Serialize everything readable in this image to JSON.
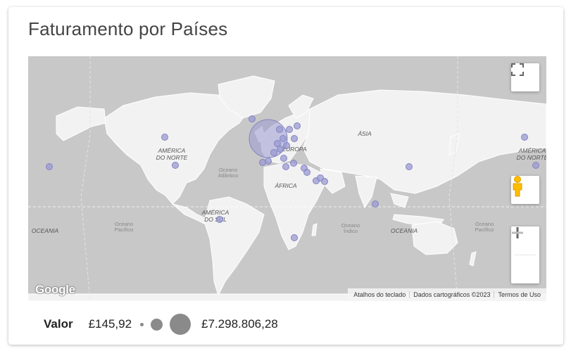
{
  "title": "Faturamento por Países",
  "map": {
    "labels": {
      "north_america_1": "AMÉRICA",
      "north_america_2": "DO NORTE",
      "north_america_right_1": "AMÉRICA",
      "north_america_right_2": "DO NORTE",
      "south_america_1": "AMÉRICA",
      "south_america_2": "DO SUL",
      "europe": "EUROPA",
      "asia": "ÁSIA",
      "africa": "ÁFRICA",
      "oceania_left": "OCEANIA",
      "oceania_right": "OCEANIA",
      "atlantic_1": "Oceano",
      "atlantic_2": "Atlântico",
      "pacific_left_1": "Oceano",
      "pacific_left_2": "Pacífico",
      "indian_1": "Oceano",
      "indian_2": "Índico",
      "pacific_right_1": "Oceano",
      "pacific_right_2": "Pacífico"
    },
    "google_logo": "Google",
    "attribution": {
      "shortcuts": "Atalhos do teclado",
      "map_data": "Dados cartográficos ©2023",
      "terms": "Termos de Uso"
    },
    "colors": {
      "water": "#c8c8c8",
      "land": "#f2f2f2",
      "marker": "#9a9ad2",
      "marker_stroke": "#8484c4"
    }
  },
  "legend": {
    "label": "Valor",
    "min": "£145,92",
    "max": "£7.298.806,28",
    "dot_color": "#8a8a8a"
  }
}
